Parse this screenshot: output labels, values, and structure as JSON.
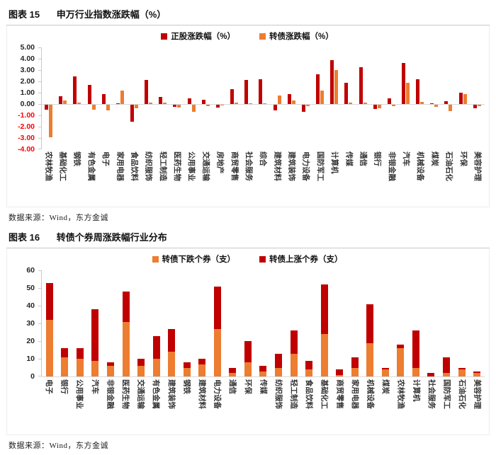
{
  "colors": {
    "positive_stock_red": "#C00000",
    "convertible_orange": "#ED7D31",
    "negative_axis_label": "#FF0000",
    "axis_line": "#C9C9C9",
    "zero_line": "#D9D9D9"
  },
  "figure15": {
    "label": "图表 15",
    "title": "申万行业指数涨跌幅（%）",
    "source": "数据来源：Wind，东方金诚"
  },
  "figure16": {
    "label": "图表 16",
    "title": "转债个券周涨跌幅行业分布",
    "source": "数据来源：Wind，东方金诚"
  },
  "chart_data": [
    {
      "id": "fig15",
      "type": "bar",
      "title": "申万行业指数涨跌幅（%）",
      "legend_position": "top",
      "grid": false,
      "ylim": [
        -4,
        5
      ],
      "yticks": [
        5,
        4,
        3,
        2,
        1,
        0,
        -1,
        -2,
        -3,
        -4
      ],
      "ytick_labels": [
        "5.00",
        "4.00",
        "3.00",
        "2.00",
        "1.00",
        "0.00",
        "-1.00",
        "-2.00",
        "-3.00",
        "-4.00"
      ],
      "categories": [
        "农林牧渔",
        "基础化工",
        "钢铁",
        "有色金属",
        "电子",
        "家用电器",
        "食品饮料",
        "纺织服饰",
        "轻工制造",
        "医药生物",
        "公用事业",
        "交通运输",
        "房地产",
        "商贸零售",
        "社会服务",
        "综合",
        "建筑材料",
        "建筑装饰",
        "电力设备",
        "国防军工",
        "计算机",
        "传媒",
        "通信",
        "银行",
        "非银金融",
        "汽车",
        "机械设备",
        "煤炭",
        "石油石化",
        "环保",
        "美容护理"
      ],
      "series": [
        {
          "name": "正股涨跌幅（%）",
          "color": "#C00000",
          "values": [
            -0.42,
            0.68,
            2.42,
            1.7,
            0.9,
            0.05,
            -1.5,
            2.1,
            0.65,
            -0.18,
            0.5,
            0.35,
            -0.25,
            1.3,
            2.1,
            2.2,
            -0.5,
            0.9,
            -0.6,
            2.6,
            3.9,
            1.85,
            3.25,
            -0.4,
            0.5,
            3.6,
            2.2,
            0.05,
            0.25,
            1.0,
            -0.3
          ]
        },
        {
          "name": "转债涨跌幅（%）",
          "color": "#ED7D31",
          "values": [
            -2.9,
            0.3,
            0.15,
            -0.45,
            -0.5,
            1.2,
            -0.3,
            0.1,
            0.1,
            -0.28,
            -0.6,
            -0.15,
            -0.08,
            0.1,
            0.05,
            0.05,
            0.75,
            0.3,
            -0.12,
            1.2,
            3.0,
            0.1,
            0.12,
            -0.3,
            -0.15,
            1.9,
            0.2,
            -0.2,
            -0.55,
            0.9,
            -0.12
          ]
        }
      ]
    },
    {
      "id": "fig16",
      "type": "stacked-bar",
      "title": "转债个券周涨跌幅行业分布",
      "legend_position": "top",
      "grid": false,
      "ylim": [
        0,
        60
      ],
      "yticks": [
        60,
        50,
        40,
        30,
        20,
        10,
        0
      ],
      "ytick_labels": [
        "60",
        "50",
        "40",
        "30",
        "20",
        "10",
        "0"
      ],
      "categories": [
        "电子",
        "银行",
        "公用事业",
        "汽车",
        "非银金融",
        "医药生物",
        "交通运输",
        "有色金属",
        "建筑装饰",
        "钢铁",
        "建筑材料",
        "电力设备",
        "通信",
        "环保",
        "传媒",
        "纺织服饰",
        "轻工制造",
        "食品饮料",
        "基础化工",
        "商贸零售",
        "家用电器",
        "机械设备",
        "煤炭",
        "农林牧渔",
        "计算机",
        "社会服务",
        "国防军工",
        "石油石化",
        "美容护理"
      ],
      "series": [
        {
          "name": "转债下跌个券（支）",
          "color": "#ED7D31",
          "values": [
            32,
            11,
            10,
            9,
            6,
            31,
            6,
            10,
            14,
            5,
            7,
            27,
            2,
            8,
            3,
            5,
            13,
            4,
            24,
            1,
            5,
            19,
            4,
            16,
            5,
            0,
            2,
            4,
            2
          ]
        },
        {
          "name": "转债上涨个券（支）",
          "color": "#C00000",
          "values": [
            21,
            5,
            6,
            29,
            2,
            17,
            4,
            13,
            13,
            3,
            3,
            24,
            3,
            12,
            3,
            8,
            13,
            5,
            28,
            3,
            6,
            22,
            1,
            2,
            21,
            2,
            9,
            1,
            1
          ]
        }
      ]
    }
  ]
}
